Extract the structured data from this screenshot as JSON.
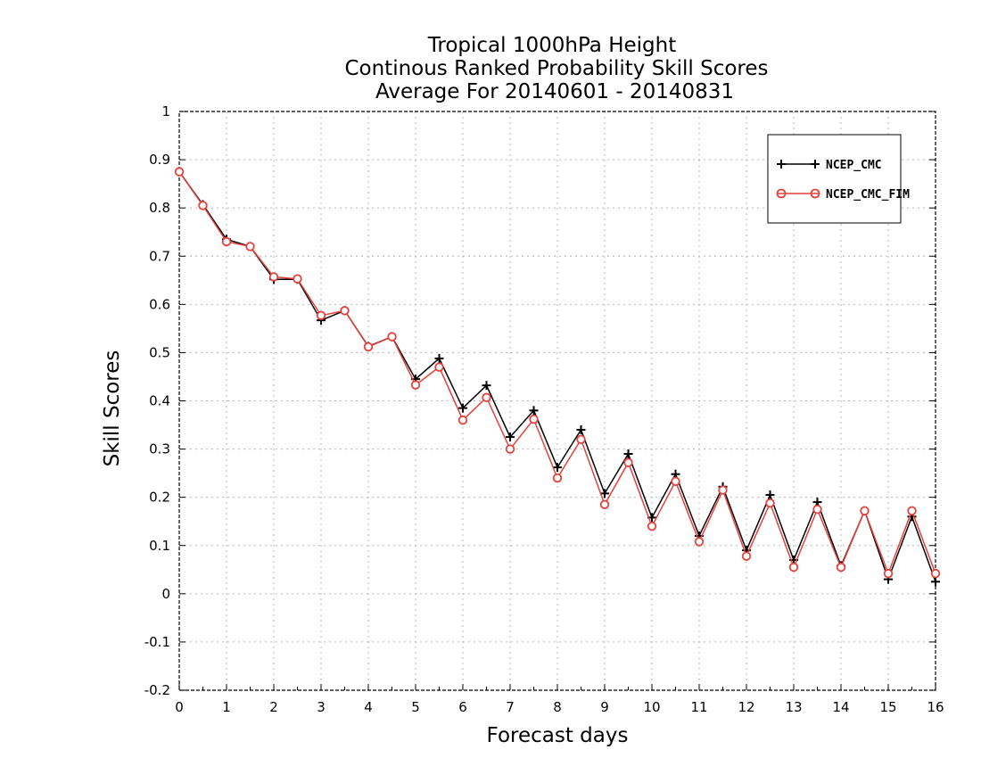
{
  "chart_data": {
    "type": "line",
    "title": [
      "Tropical 1000hPa Height",
      "Continous Ranked Probability Skill Scores",
      "Average For 20140601 - 20140831"
    ],
    "xlabel": "Forecast days",
    "ylabel": "Skill Scores",
    "xlim": [
      0,
      16
    ],
    "ylim": [
      -0.2,
      1
    ],
    "xticks": [
      0,
      1,
      2,
      3,
      4,
      5,
      6,
      7,
      8,
      9,
      10,
      11,
      12,
      13,
      14,
      15,
      16
    ],
    "yticks": [
      -0.2,
      -0.1,
      0,
      0.1,
      0.2,
      0.3,
      0.4,
      0.5,
      0.6,
      0.7,
      0.8,
      0.9,
      1
    ],
    "ytick_labels": [
      "-0.2",
      "-0.1",
      "0",
      "0.1",
      "0.2",
      "0.3",
      "0.4",
      "0.5",
      "0.6",
      "0.7",
      "0.8",
      "0.9",
      "1"
    ],
    "grid": true,
    "legend_position": "top-right",
    "x": [
      0,
      0.5,
      1,
      1.5,
      2,
      2.5,
      3,
      3.5,
      4,
      4.5,
      5,
      5.5,
      6,
      6.5,
      7,
      7.5,
      8,
      8.5,
      9,
      9.5,
      10,
      10.5,
      11,
      11.5,
      12,
      12.5,
      13,
      13.5,
      14,
      14.5,
      15,
      15.5,
      16
    ],
    "series": [
      {
        "name": "NCEP_CMC",
        "color": "#000000",
        "marker": "plus",
        "values": [
          0.875,
          0.807,
          0.735,
          0.72,
          0.652,
          0.652,
          0.567,
          0.587,
          0.513,
          0.533,
          0.445,
          0.488,
          0.385,
          0.432,
          0.325,
          0.38,
          0.262,
          0.34,
          0.208,
          0.29,
          0.158,
          0.248,
          0.12,
          0.222,
          0.09,
          0.205,
          0.07,
          0.19,
          0.058,
          0.172,
          0.03,
          0.16,
          0.025
        ]
      },
      {
        "name": "NCEP_CMC_FIM",
        "color": "#e8403a",
        "marker": "circle",
        "values": [
          0.875,
          0.805,
          0.73,
          0.72,
          0.657,
          0.653,
          0.577,
          0.587,
          0.512,
          0.533,
          0.433,
          0.47,
          0.36,
          0.407,
          0.3,
          0.362,
          0.24,
          0.32,
          0.185,
          0.272,
          0.14,
          0.233,
          0.108,
          0.215,
          0.078,
          0.188,
          0.055,
          0.175,
          0.055,
          0.172,
          0.042,
          0.172,
          0.042
        ]
      }
    ]
  }
}
